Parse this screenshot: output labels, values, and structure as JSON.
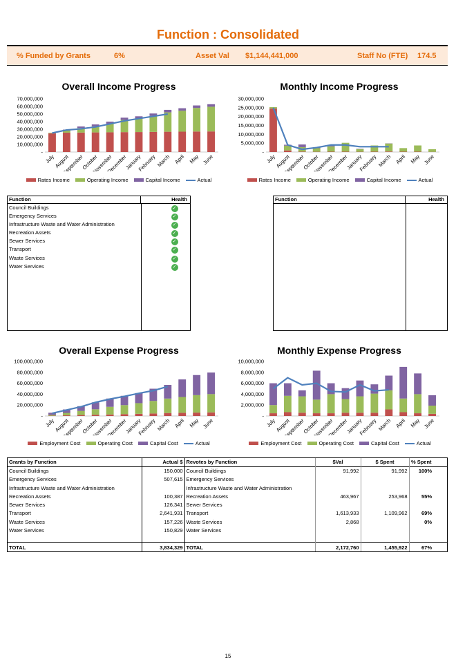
{
  "page_title": "Function : Consolidated",
  "kpis": {
    "funded_label": "% Funded by Grants",
    "funded_value": "6%",
    "asset_label": "Asset Val",
    "asset_value": "$1,144,441,000",
    "staff_label": "Staff No (FTE)",
    "staff_value": "174.5"
  },
  "colors": {
    "rates": "#c0504d",
    "operating": "#9bbb59",
    "capital": "#8064a2",
    "actual": "#4f81bd",
    "accent": "#e46c0a"
  },
  "months": [
    "July",
    "August",
    "September",
    "October",
    "November",
    "December",
    "January",
    "February",
    "March",
    "April",
    "May",
    "June"
  ],
  "chart_data": [
    {
      "type": "bar",
      "title": "Overall Income Progress",
      "ylim": [
        0,
        70000000
      ],
      "yticks": [
        "70,000,000",
        "60,000,000",
        "50,000,000",
        "40,000,000",
        "30,000,000",
        "20,000,000",
        "10,000,000",
        "-"
      ],
      "series": [
        {
          "name": "Rates Income",
          "values": [
            24500000,
            25500000,
            25600000,
            25800000,
            26000000,
            26200000,
            26300000,
            26500000,
            26700000,
            26800000,
            27000000,
            27100000
          ]
        },
        {
          "name": "Operating Income",
          "values": [
            800000,
            3500000,
            6000000,
            8000000,
            11000000,
            16000000,
            17500000,
            21000000,
            25500000,
            27500000,
            31000000,
            32500000
          ]
        },
        {
          "name": "Capital Income",
          "values": [
            0,
            500000,
            2000000,
            2500000,
            3000000,
            3000000,
            3200000,
            3200000,
            3300000,
            3300000,
            3300000,
            3300000
          ]
        },
        {
          "name": "Actual",
          "values": [
            25000000,
            29000000,
            30500000,
            33000000,
            37000000,
            41000000,
            44000000,
            47000000,
            50000000,
            null,
            null,
            null
          ]
        }
      ]
    },
    {
      "type": "bar",
      "title": "Monthly Income Progress",
      "ylim": [
        0,
        30000000
      ],
      "yticks": [
        "30,000,000",
        "25,000,000",
        "20,000,000",
        "15,000,000",
        "10,000,000",
        "5,000,000",
        "-"
      ],
      "series": [
        {
          "name": "Rates Income",
          "values": [
            24500000,
            900000,
            250000,
            150000,
            200000,
            200000,
            150000,
            200000,
            300000,
            200000,
            200000,
            100000
          ]
        },
        {
          "name": "Operating Income",
          "values": [
            800000,
            2700000,
            2500000,
            2000000,
            3000000,
            5000000,
            1500000,
            3500000,
            4500000,
            2000000,
            3500000,
            1500000
          ]
        },
        {
          "name": "Capital Income",
          "values": [
            0,
            500000,
            1500000,
            500000,
            500000,
            0,
            200000,
            0,
            100000,
            0,
            0,
            0
          ]
        },
        {
          "name": "Actual",
          "values": [
            25000000,
            4000000,
            1500000,
            2500000,
            4000000,
            4000000,
            3000000,
            3000000,
            3000000,
            null,
            null,
            null
          ]
        }
      ]
    },
    {
      "type": "bar",
      "title": "Overall Expense Progress",
      "ylim": [
        0,
        100000000
      ],
      "yticks": [
        "100,000,000",
        "80,000,000",
        "60,000,000",
        "40,000,000",
        "20,000,000",
        "-"
      ],
      "series": [
        {
          "name": "Employment Cost",
          "values": [
            500000,
            1200000,
            1800000,
            2300000,
            2800000,
            3400000,
            4000000,
            4600000,
            5400000,
            5800000,
            6200000,
            6600000
          ]
        },
        {
          "name": "Operating Cost",
          "values": [
            1500000,
            4500000,
            7500000,
            10000000,
            14000000,
            16500000,
            19500000,
            23000000,
            26500000,
            29000000,
            32000000,
            33500000
          ]
        },
        {
          "name": "Capital Cost",
          "values": [
            4000000,
            6300000,
            8700000,
            12700000,
            15200000,
            17100000,
            18500000,
            22400000,
            25100000,
            32200000,
            36800000,
            39500000
          ]
        },
        {
          "name": "Actual",
          "values": [
            5000000,
            11000000,
            17000000,
            25000000,
            31000000,
            36000000,
            41500000,
            46500000,
            54000000,
            null,
            null,
            null
          ]
        }
      ]
    },
    {
      "type": "bar",
      "title": "Monthly Expense Progress",
      "ylim": [
        0,
        10000000
      ],
      "yticks": [
        "10,000,000",
        "8,000,000",
        "6,000,000",
        "4,000,000",
        "2,000,000",
        "-"
      ],
      "series": [
        {
          "name": "Employment Cost",
          "values": [
            500000,
            700000,
            600000,
            500000,
            500000,
            600000,
            600000,
            600000,
            1200000,
            700000,
            500000,
            400000
          ]
        },
        {
          "name": "Operating Cost",
          "values": [
            1500000,
            3000000,
            3000000,
            2500000,
            3500000,
            2500000,
            3000000,
            3500000,
            3500000,
            2500000,
            3500000,
            1500000
          ]
        },
        {
          "name": "Capital Cost",
          "values": [
            4000000,
            2300000,
            1100000,
            5300000,
            2000000,
            2000000,
            2900000,
            1700000,
            2700000,
            5800000,
            3800000,
            1900000
          ]
        },
        {
          "name": "Actual",
          "values": [
            5000000,
            7000000,
            5700000,
            6000000,
            4500000,
            4400000,
            5700000,
            4600000,
            4800000,
            null,
            null,
            null
          ]
        }
      ]
    }
  ],
  "health_left": {
    "col1": "Function",
    "col2": "Health",
    "rows": [
      "Council Buildings",
      "Emergency Services",
      "Infrastructure Waste and Water Administration",
      "Recreation Assets",
      "Sewer Services",
      "Transport",
      "Waste Services",
      "Water Services"
    ],
    "status": "healthy"
  },
  "health_right": {
    "col1": "Function",
    "col2": "Health"
  },
  "bottom_table": {
    "headers": [
      "Grants by Function",
      "Actual $",
      "Revotes by Function",
      "$Val",
      "$ Spent",
      "% Spent"
    ],
    "rows": [
      [
        "Council Buildings",
        "150,000",
        "Council Buildings",
        "91,992",
        "91,992",
        "100%"
      ],
      [
        "Emergency Services",
        "507,615",
        "Emergency Services",
        "",
        "",
        ""
      ],
      [
        "Infrastructure Waste and Water Administration",
        "",
        "Infrastructure Waste and Water Administration",
        "",
        "",
        ""
      ],
      [
        "Recreation Assets",
        "100,387",
        "Recreation Assets",
        "463,967",
        "253,968",
        "55%"
      ],
      [
        "Sewer Services",
        "126,341",
        "Sewer Services",
        "",
        "",
        ""
      ],
      [
        "Transport",
        "2,641,931",
        "Transport",
        "1,613,933",
        "1,109,962",
        "69%"
      ],
      [
        "Waste Services",
        "157,226",
        "Waste Services",
        "2,868",
        "",
        "0%"
      ],
      [
        "Water Services",
        "150,829",
        "Water Services",
        "",
        "",
        ""
      ]
    ],
    "total": [
      "TOTAL",
      "3,834,329",
      "TOTAL",
      "2,172,760",
      "1,455,922",
      "67%"
    ]
  },
  "page_number": "15"
}
